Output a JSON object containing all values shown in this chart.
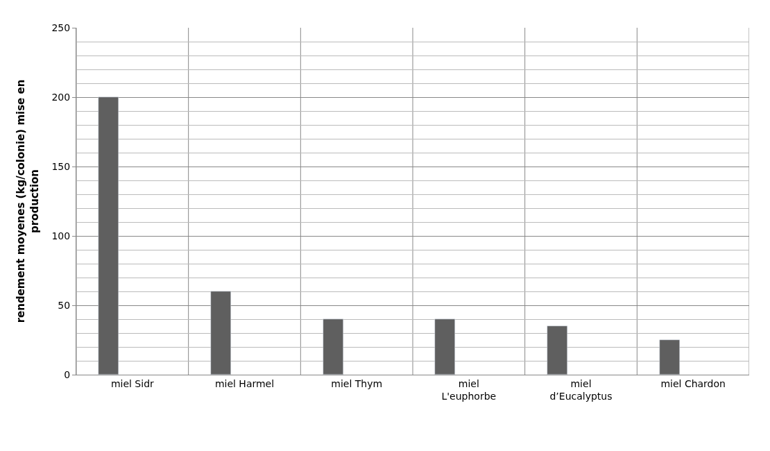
{
  "chart_data": {
    "type": "bar",
    "ylabel": "rendement moyenes (kg/colonie) mise en production",
    "categories": [
      "miel Sidr",
      "miel Harmel",
      "miel Thym",
      "miel L'euphorbe",
      "miel d’Eucalyptus",
      "miel Chardon"
    ],
    "values": [
      200,
      60,
      40,
      40,
      35,
      25
    ],
    "color": "#5f5f5f",
    "ylim": [
      0,
      250
    ],
    "yticks": [
      0,
      50,
      100,
      150,
      200,
      250
    ],
    "grid": true
  }
}
